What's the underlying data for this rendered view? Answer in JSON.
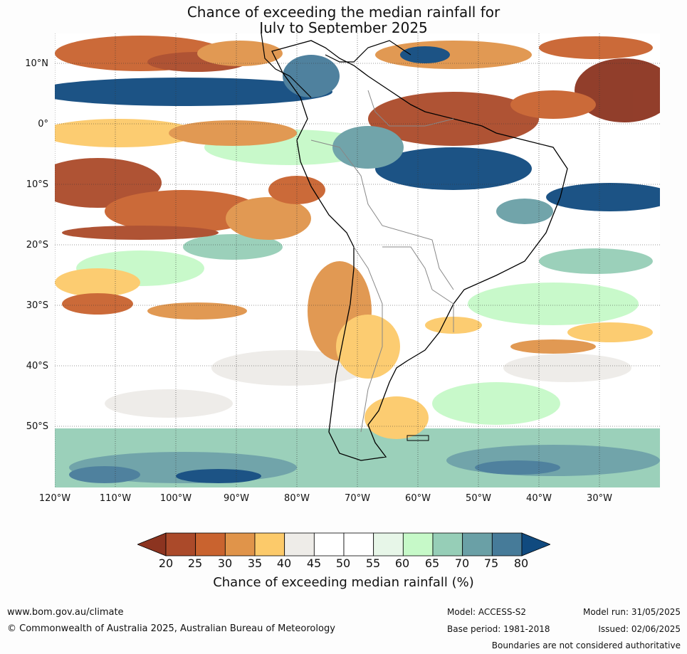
{
  "title": {
    "line1": "Chance of exceeding the median rainfall for",
    "line2": "July to September 2025"
  },
  "map": {
    "lat_labels": [
      "10°N",
      "0°",
      "10°S",
      "20°S",
      "30°S",
      "40°S",
      "50°S"
    ],
    "lon_labels": [
      "120°W",
      "110°W",
      "100°W",
      "90°W",
      "80°W",
      "70°W",
      "60°W",
      "50°W",
      "40°W",
      "30°W"
    ],
    "extent": {
      "lon_min": -120,
      "lon_max": -20,
      "lat_min": -60,
      "lat_max": 15
    }
  },
  "legend": {
    "ticks": [
      "20",
      "25",
      "30",
      "35",
      "40",
      "45",
      "50",
      "55",
      "60",
      "65",
      "70",
      "75",
      "80"
    ],
    "caption": "Chance of exceeding median rainfall (%)",
    "colors": [
      "#8c3420",
      "#ab4a2a",
      "#c9632f",
      "#e0944a",
      "#fcca6a",
      "#eeece8",
      "#ffffff",
      "#ffffff",
      "#e7f6e8",
      "#c6f9c8",
      "#96ceb7",
      "#6aa0a6",
      "#467b99",
      "#104a7f"
    ]
  },
  "footer": {
    "website": "www.bom.gov.au/climate",
    "copyright": "© Commonwealth of Australia 2025, Australian Bureau of Meteorology",
    "model": "Model: ACCESS-S2",
    "base_period": "Base period: 1981-2018",
    "model_run": "Model run: 31/05/2025",
    "issued": "Issued: 02/06/2025",
    "disclaimer": "Boundaries are not considered authoritative"
  }
}
